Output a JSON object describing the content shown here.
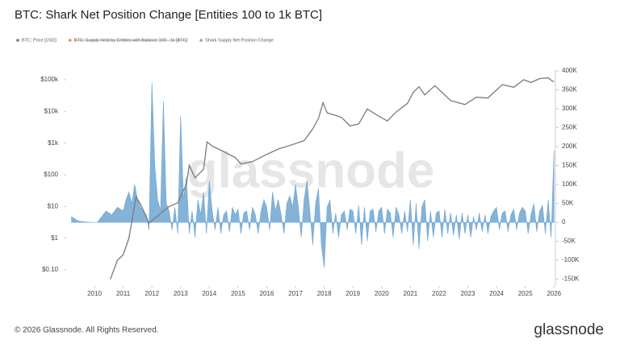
{
  "chart_data": {
    "type": "combo",
    "title": "BTC: Shark Net Position Change [Entities 100 to 1k BTC]",
    "watermark": "glassnode",
    "footer": "© 2026 Glassnode. All Rights Reserved.",
    "logo": "glassnode",
    "xlim": [
      2009.1,
      2026.05
    ],
    "xticks": [
      2010,
      2011,
      2012,
      2013,
      2014,
      2015,
      2016,
      2017,
      2018,
      2019,
      2020,
      2021,
      2022,
      2023,
      2024,
      2025,
      2026
    ],
    "ylim": [
      0.031,
      190000
    ],
    "log_y": true,
    "yticks": [
      {
        "value": 0.1,
        "label": "$0.10"
      },
      {
        "value": 1,
        "label": "$1"
      },
      {
        "value": 10,
        "label": "$10"
      },
      {
        "value": 100,
        "label": "$100"
      },
      {
        "value": 1000,
        "label": "$1k"
      },
      {
        "value": 10000,
        "label": "$10k"
      },
      {
        "value": 100000,
        "label": "$100k"
      }
    ],
    "y2lim": [
      -168000,
      400000
    ],
    "y2ticks": [
      {
        "value": -150000,
        "label": "-150K"
      },
      {
        "value": -100000,
        "label": "-100K"
      },
      {
        "value": -50000,
        "label": "-50K"
      },
      0,
      {
        "value": 50000,
        "label": "50K"
      },
      {
        "value": 100000,
        "label": "100K"
      },
      {
        "value": 150000,
        "label": "150K"
      },
      {
        "value": 200000,
        "label": "200K"
      },
      {
        "value": 250000,
        "label": "250K"
      },
      {
        "value": 300000,
        "label": "300K"
      },
      {
        "value": 350000,
        "label": "350K"
      },
      {
        "value": 400000,
        "label": "400K"
      }
    ],
    "series": [
      {
        "name": "BTC: Price [USD]",
        "type": "line",
        "color": "#7a7a7a",
        "x": [
          2010.55,
          2010.8,
          2011.0,
          2011.2,
          2011.45,
          2011.6,
          2011.9,
          2012.2,
          2012.6,
          2012.9,
          2013.2,
          2013.3,
          2013.5,
          2013.8,
          2013.92,
          2014.1,
          2014.4,
          2014.9,
          2015.1,
          2015.5,
          2015.9,
          2016.4,
          2016.9,
          2017.3,
          2017.6,
          2017.8,
          2017.96,
          2018.1,
          2018.3,
          2018.6,
          2018.9,
          2019.2,
          2019.5,
          2019.8,
          2020.2,
          2020.5,
          2020.9,
          2021.1,
          2021.3,
          2021.5,
          2021.85,
          2022.1,
          2022.4,
          2022.9,
          2023.3,
          2023.7,
          2023.95,
          2024.2,
          2024.6,
          2024.95,
          2025.2,
          2025.5,
          2025.8,
          2025.95,
          2026.0
        ],
        "values": [
          0.05,
          0.2,
          0.3,
          1,
          20,
          12,
          3,
          5,
          10,
          13,
          50,
          200,
          80,
          150,
          1100,
          800,
          600,
          350,
          220,
          260,
          400,
          650,
          900,
          1200,
          2800,
          6000,
          19000,
          9000,
          8000,
          6500,
          3500,
          4000,
          12000,
          8000,
          5000,
          9500,
          18000,
          40000,
          60000,
          33000,
          65000,
          40000,
          22000,
          16500,
          28000,
          26500,
          43000,
          70000,
          58000,
          100000,
          82000,
          108000,
          115000,
          90000,
          88000
        ]
      },
      {
        "name": "BTC: Supply Held by Entities with Balance 100 - 1k [BTC]",
        "type": "line",
        "color": "#f08a5d",
        "visible": false
      },
      {
        "name": "Shark Supply Net Position Change",
        "type": "area",
        "color": "#6ea6d2",
        "axis": "y2",
        "x": [
          2009.2,
          2009.3,
          2009.4,
          2009.5,
          2009.6,
          2009.7,
          2009.8,
          2009.9,
          2010.0,
          2010.1,
          2010.2,
          2010.3,
          2010.4,
          2010.5,
          2010.6,
          2010.7,
          2010.8,
          2010.9,
          2011.0,
          2011.1,
          2011.2,
          2011.3,
          2011.4,
          2011.5,
          2011.6,
          2011.7,
          2011.8,
          2011.9,
          2012.0,
          2012.1,
          2012.2,
          2012.3,
          2012.4,
          2012.5,
          2012.6,
          2012.7,
          2012.8,
          2012.9,
          2013.0,
          2013.1,
          2013.2,
          2013.3,
          2013.4,
          2013.5,
          2013.6,
          2013.7,
          2013.8,
          2013.9,
          2014.0,
          2014.1,
          2014.2,
          2014.3,
          2014.4,
          2014.5,
          2014.6,
          2014.7,
          2014.8,
          2014.9,
          2015.0,
          2015.1,
          2015.2,
          2015.3,
          2015.4,
          2015.5,
          2015.6,
          2015.7,
          2015.8,
          2015.9,
          2016.0,
          2016.1,
          2016.2,
          2016.3,
          2016.4,
          2016.5,
          2016.6,
          2016.7,
          2016.8,
          2016.9,
          2017.0,
          2017.1,
          2017.2,
          2017.3,
          2017.4,
          2017.5,
          2017.6,
          2017.7,
          2017.8,
          2017.9,
          2018.0,
          2018.1,
          2018.2,
          2018.3,
          2018.4,
          2018.5,
          2018.6,
          2018.7,
          2018.8,
          2018.9,
          2019.0,
          2019.1,
          2019.2,
          2019.3,
          2019.4,
          2019.5,
          2019.6,
          2019.7,
          2019.8,
          2019.9,
          2020.0,
          2020.1,
          2020.2,
          2020.3,
          2020.4,
          2020.5,
          2020.6,
          2020.7,
          2020.8,
          2020.9,
          2021.0,
          2021.1,
          2021.2,
          2021.3,
          2021.4,
          2021.5,
          2021.6,
          2021.7,
          2021.8,
          2021.9,
          2022.0,
          2022.1,
          2022.2,
          2022.3,
          2022.4,
          2022.5,
          2022.6,
          2022.7,
          2022.8,
          2022.9,
          2023.0,
          2023.1,
          2023.2,
          2023.3,
          2023.4,
          2023.5,
          2023.6,
          2023.7,
          2023.8,
          2023.9,
          2024.0,
          2024.1,
          2024.2,
          2024.3,
          2024.4,
          2024.5,
          2024.6,
          2024.7,
          2024.8,
          2024.9,
          2025.0,
          2025.1,
          2025.2,
          2025.3,
          2025.4,
          2025.5,
          2025.6,
          2025.7,
          2025.8,
          2025.9,
          2026.0
        ],
        "values": [
          15000,
          10000,
          5000,
          3000,
          2000,
          1000,
          500,
          0,
          0,
          0,
          10000,
          20000,
          30000,
          25000,
          20000,
          30000,
          40000,
          35000,
          30000,
          60000,
          80000,
          50000,
          100000,
          60000,
          40000,
          30000,
          20000,
          -20000,
          370000,
          150000,
          60000,
          30000,
          320000,
          50000,
          30000,
          -20000,
          40000,
          -30000,
          280000,
          60000,
          120000,
          -30000,
          30000,
          -40000,
          60000,
          20000,
          80000,
          -30000,
          110000,
          30000,
          -20000,
          40000,
          -30000,
          20000,
          30000,
          -25000,
          40000,
          20000,
          35000,
          -30000,
          25000,
          30000,
          -20000,
          40000,
          20000,
          -30000,
          30000,
          60000,
          40000,
          -20000,
          80000,
          30000,
          60000,
          20000,
          -30000,
          50000,
          70000,
          40000,
          100000,
          40000,
          -40000,
          60000,
          110000,
          30000,
          -60000,
          50000,
          90000,
          -60000,
          -120000,
          40000,
          60000,
          -30000,
          25000,
          -40000,
          20000,
          30000,
          -20000,
          35000,
          30000,
          -30000,
          45000,
          -60000,
          40000,
          -50000,
          30000,
          35000,
          -25000,
          30000,
          40000,
          -30000,
          35000,
          25000,
          -40000,
          40000,
          20000,
          -30000,
          30000,
          -25000,
          60000,
          -60000,
          50000,
          -70000,
          40000,
          60000,
          -50000,
          30000,
          -40000,
          25000,
          30000,
          -40000,
          35000,
          -30000,
          25000,
          -35000,
          20000,
          -45000,
          25000,
          -30000,
          20000,
          -40000,
          15000,
          -20000,
          25000,
          -25000,
          20000,
          -30000,
          15000,
          30000,
          40000,
          -20000,
          25000,
          30000,
          -25000,
          20000,
          35000,
          -20000,
          25000,
          40000,
          30000,
          -30000,
          20000,
          50000,
          -25000,
          30000,
          45000,
          -30000,
          60000,
          -40000,
          190000
        ]
      }
    ]
  }
}
